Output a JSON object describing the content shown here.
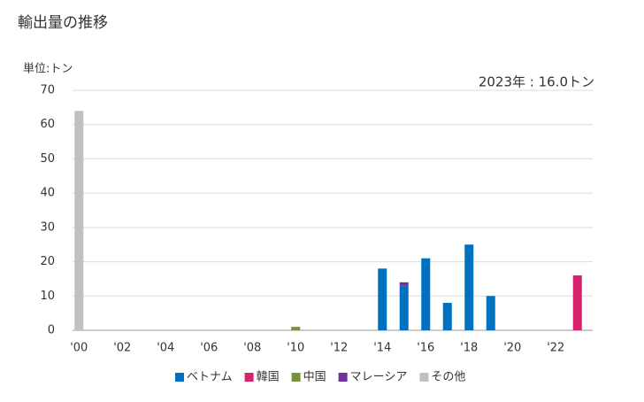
{
  "chart_data": {
    "type": "bar",
    "stacked": true,
    "title": "輸出量の推移",
    "unit_label": "単位:トン",
    "annotation": "2023年 : 16.0トン",
    "categories": [
      "'00",
      null,
      "'02",
      null,
      "'04",
      null,
      "'06",
      null,
      "'08",
      null,
      "'10",
      null,
      "'12",
      null,
      "'14",
      null,
      "'16",
      null,
      "'18",
      null,
      "'20",
      null,
      "'22",
      null
    ],
    "series": [
      {
        "name": "ベトナム",
        "color": "#0070c0",
        "values": [
          null,
          null,
          null,
          null,
          null,
          null,
          null,
          null,
          null,
          null,
          null,
          null,
          null,
          null,
          18,
          13,
          21,
          8,
          25,
          10,
          null,
          null,
          null,
          null
        ]
      },
      {
        "name": "韓国",
        "color": "#d9216e",
        "values": [
          null,
          null,
          null,
          null,
          null,
          null,
          null,
          null,
          null,
          null,
          null,
          null,
          null,
          null,
          null,
          null,
          null,
          null,
          null,
          null,
          null,
          null,
          null,
          16
        ]
      },
      {
        "name": "中国",
        "color": "#77933c",
        "values": [
          null,
          null,
          null,
          null,
          null,
          null,
          null,
          null,
          null,
          null,
          1,
          null,
          null,
          null,
          null,
          null,
          null,
          null,
          null,
          null,
          null,
          null,
          null,
          null
        ]
      },
      {
        "name": "マレーシア",
        "color": "#7030a0",
        "values": [
          null,
          null,
          null,
          null,
          null,
          null,
          null,
          null,
          null,
          null,
          null,
          null,
          null,
          null,
          null,
          1,
          null,
          null,
          null,
          null,
          null,
          null,
          null,
          null
        ]
      },
      {
        "name": "その他",
        "color": "#c0c0c0",
        "values": [
          64,
          null,
          null,
          null,
          null,
          null,
          null,
          null,
          null,
          null,
          null,
          null,
          null,
          null,
          null,
          null,
          null,
          null,
          null,
          null,
          null,
          null,
          null,
          null
        ]
      }
    ],
    "ylim": [
      0,
      70
    ],
    "yticks": [
      0,
      10,
      20,
      30,
      40,
      50,
      60,
      70
    ],
    "grid": true
  }
}
